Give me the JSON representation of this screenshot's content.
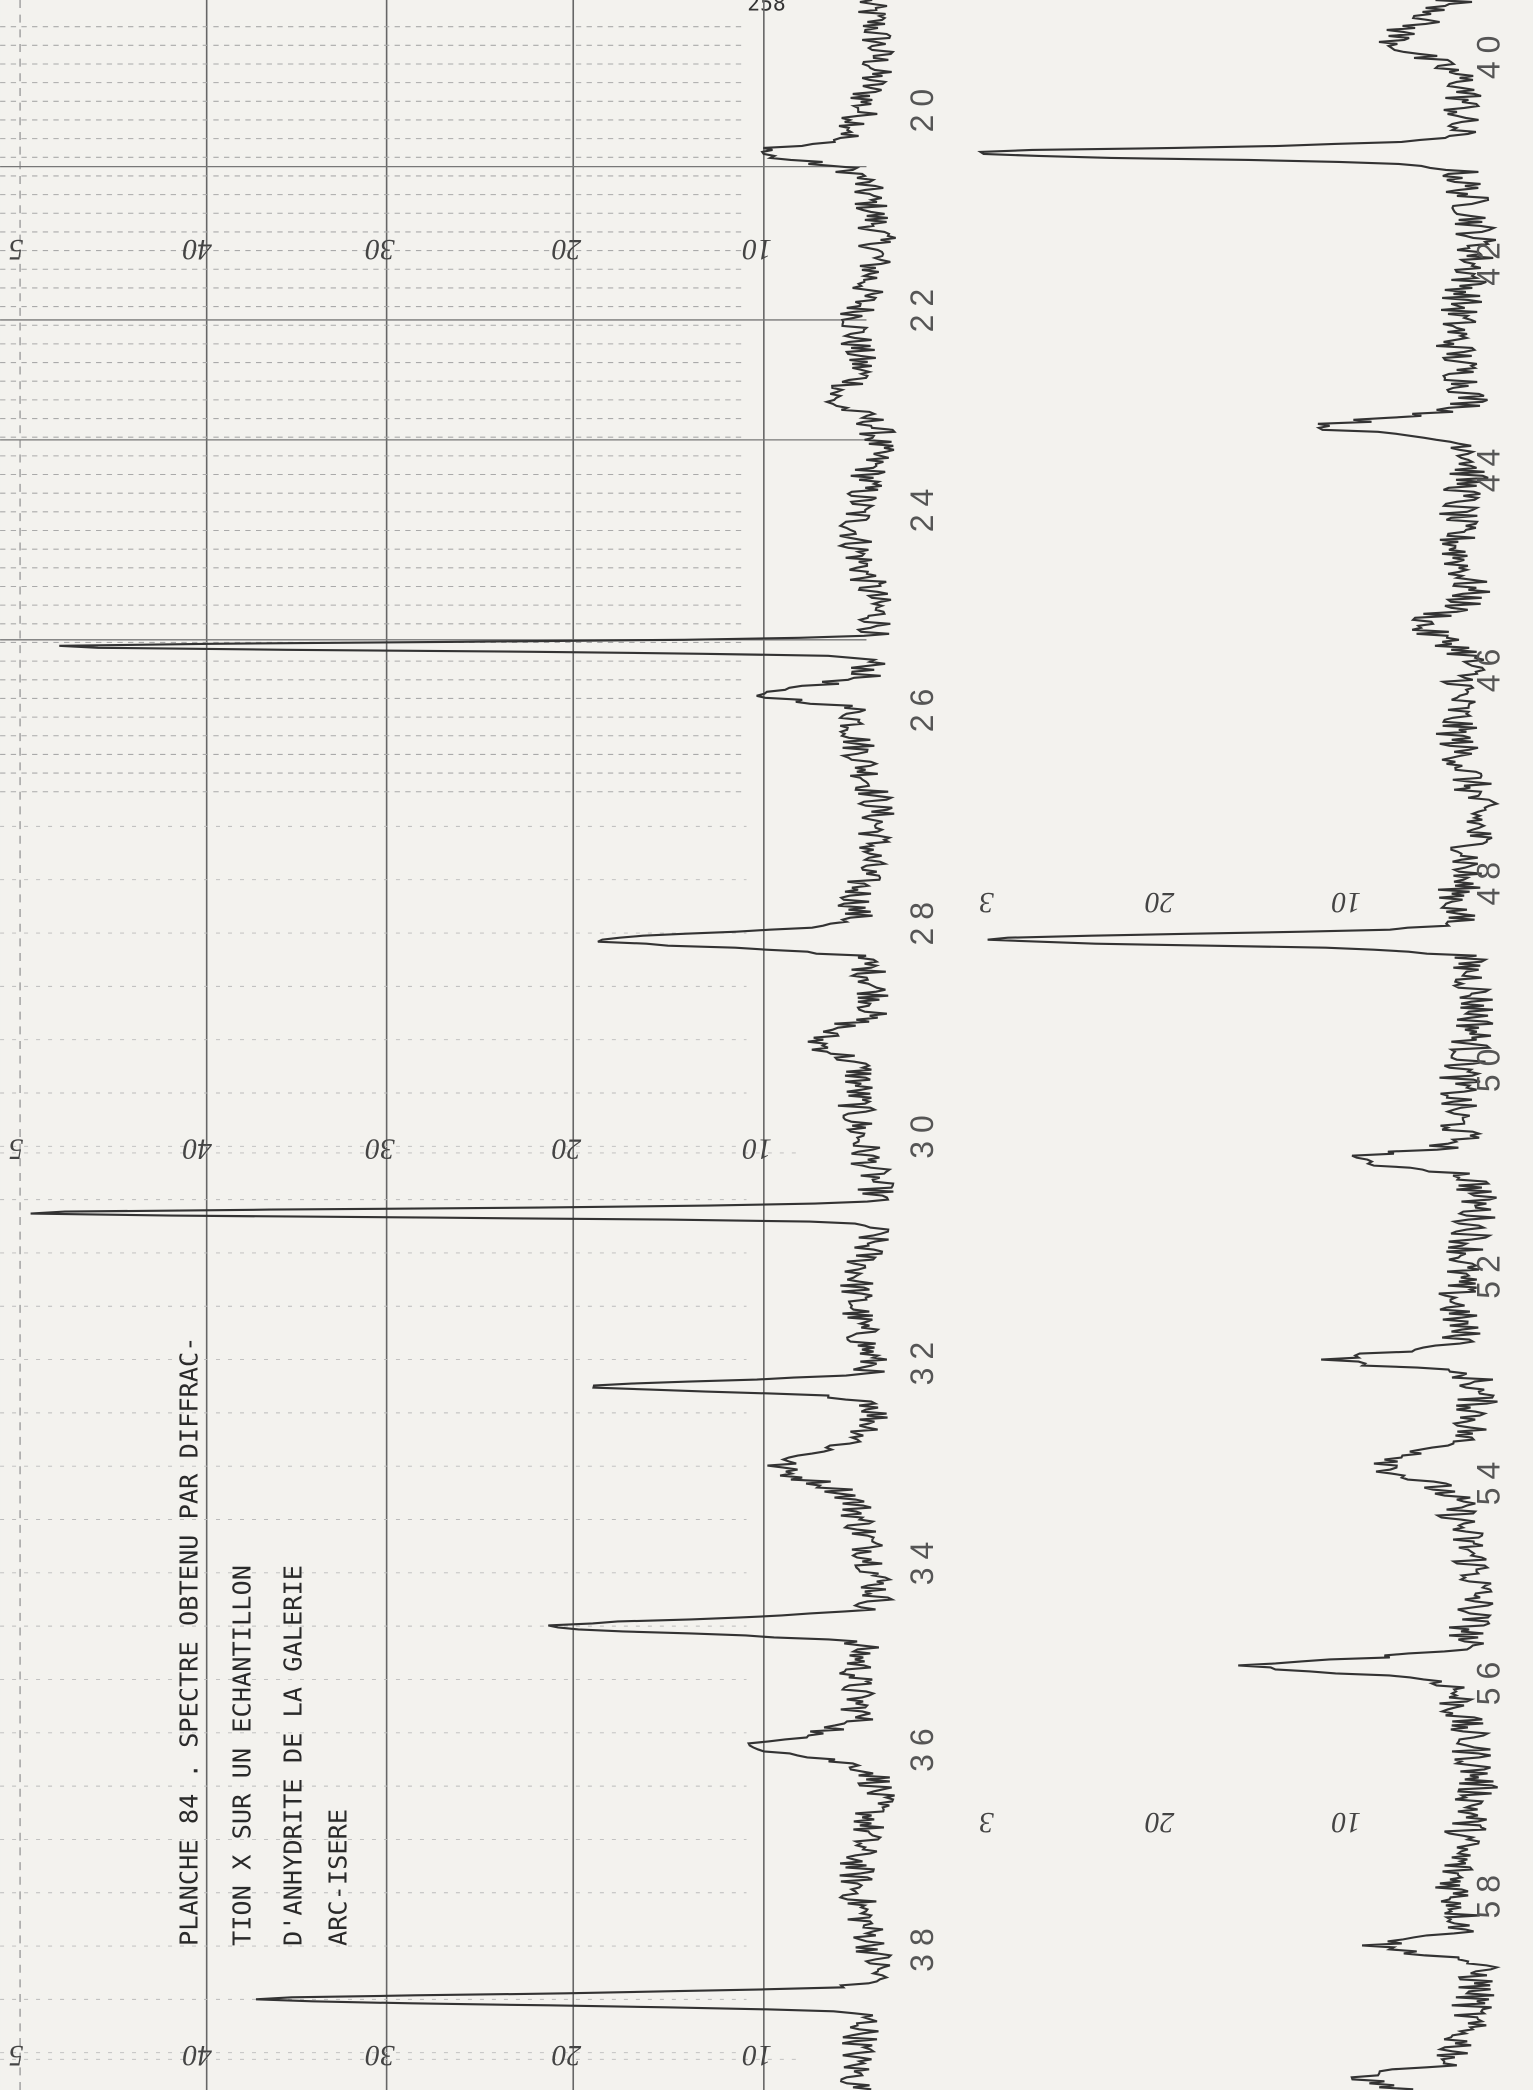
{
  "page_number": "258",
  "caption": [
    "PLANCHE 84 . SPECTRE OBTENU PAR DIFFRAC-",
    "TION X SUR UN ECHANTILLON",
    "D'ANHYDRITE DE  LA GALERIE",
    "ARC-ISERE"
  ],
  "left_chart": {
    "intensity_labels": [
      5,
      40,
      30,
      20,
      10
    ],
    "angle_labels": [
      20,
      22,
      24,
      26,
      28,
      30,
      32,
      34,
      36,
      38
    ]
  },
  "right_chart": {
    "intensity_labels": [
      3,
      20,
      10
    ],
    "angle_labels": [
      40,
      42,
      44,
      46,
      48,
      50,
      52,
      54,
      56,
      58
    ]
  }
}
